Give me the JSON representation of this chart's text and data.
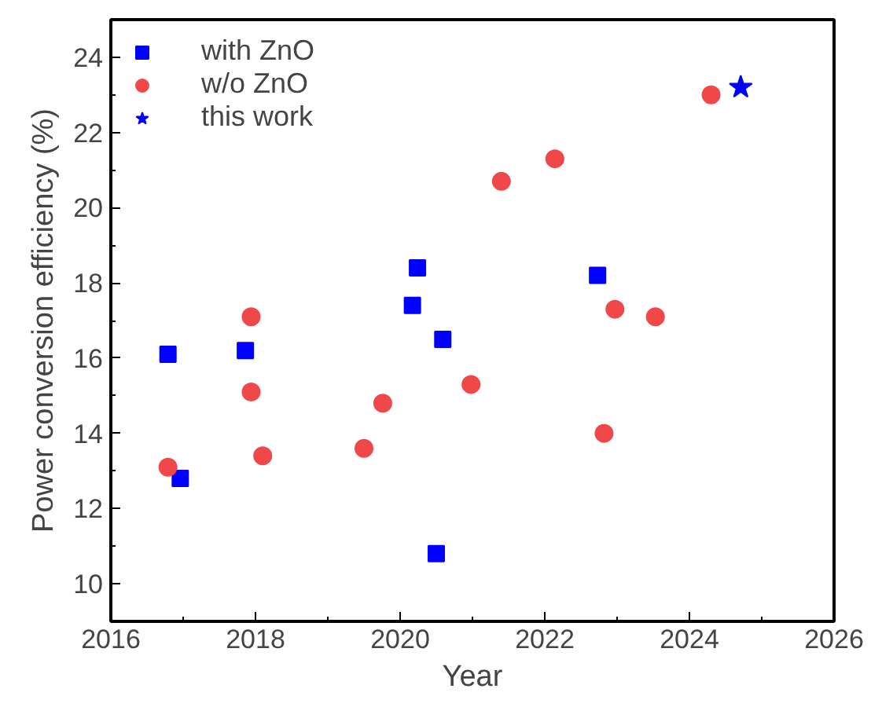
{
  "chart_data": {
    "type": "scatter",
    "xlabel": "Year",
    "ylabel": "Power conversion efficiency (%)",
    "xlim": [
      2016,
      2026
    ],
    "xticks": [
      2016,
      2018,
      2020,
      2022,
      2024,
      2026
    ],
    "ylim": [
      9,
      25
    ],
    "yticks": [
      10,
      12,
      14,
      16,
      18,
      20,
      22,
      24
    ],
    "grid": false,
    "legend": "top left",
    "series": [
      {
        "name": "with ZnO",
        "color": "#0000ff",
        "marker": "square",
        "x": [
          2016.79,
          2016.96,
          2017.86,
          2020.17,
          2020.24,
          2020.59,
          2020.5,
          2022.73
        ],
        "values": [
          16.1,
          12.8,
          16.2,
          17.4,
          18.4,
          16.5,
          10.8,
          18.2
        ]
      },
      {
        "name": "w/o ZnO",
        "color": "#f04848",
        "marker": "circle",
        "x": [
          2016.79,
          2017.94,
          2017.94,
          2018.1,
          2019.5,
          2019.76,
          2020.98,
          2021.4,
          2022.14,
          2022.97,
          2022.82,
          2023.53,
          2024.3
        ],
        "values": [
          13.1,
          17.1,
          15.1,
          13.4,
          13.6,
          14.8,
          15.3,
          20.7,
          21.3,
          17.3,
          14.0,
          17.1,
          23.0
        ]
      },
      {
        "name": "this work",
        "color": "#0000ff",
        "marker": "star",
        "x": [
          2024.71
        ],
        "values": [
          23.2
        ]
      }
    ]
  }
}
